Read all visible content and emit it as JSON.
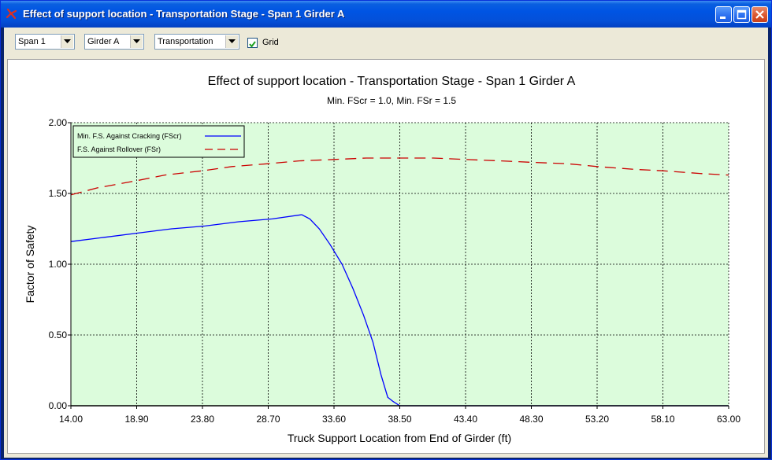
{
  "window": {
    "title": "Effect of support location - Transportation Stage - Span 1 Girder A"
  },
  "toolbar": {
    "span": "Span 1",
    "girder": "Girder A",
    "stage": "Transportation",
    "grid_label": "Grid",
    "grid_checked": true
  },
  "colors": {
    "plot_bg": "#dcfcdc",
    "fscr": "#0000ff",
    "fsr": "#cc0000"
  },
  "chart_data": {
    "type": "line",
    "title": "Effect of support location - Transportation Stage - Span 1 Girder A",
    "subtitle": "Min. FScr = 1.0, Min. FSr = 1.5",
    "xlabel": "Truck Support Location from End of Girder (ft)",
    "ylabel": "Factor of Safety",
    "xlim": [
      14.0,
      63.0
    ],
    "ylim": [
      0.0,
      2.0
    ],
    "xticks": [
      "14.00",
      "18.90",
      "23.80",
      "28.70",
      "33.60",
      "38.50",
      "43.40",
      "48.30",
      "53.20",
      "58.10",
      "63.00"
    ],
    "yticks": [
      "0.00",
      "0.50",
      "1.00",
      "1.50",
      "2.00"
    ],
    "grid": true,
    "legend_position": "top-left",
    "series": [
      {
        "name": "Min. F.S. Against Cracking (FScr)",
        "style": "solid",
        "x": [
          14.0,
          16.5,
          19.0,
          21.5,
          24.0,
          26.5,
          29.0,
          31.2,
          31.8,
          32.5,
          33.3,
          34.2,
          35.0,
          35.8,
          36.5,
          37.1,
          37.6,
          38.0,
          38.5,
          39.0,
          43.4,
          48.3,
          53.2,
          58.1,
          63.0
        ],
        "y": [
          1.16,
          1.19,
          1.22,
          1.25,
          1.27,
          1.3,
          1.32,
          1.35,
          1.32,
          1.25,
          1.14,
          1.0,
          0.83,
          0.64,
          0.45,
          0.22,
          0.06,
          0.03,
          0.0,
          0.0,
          0.0,
          0.0,
          0.0,
          0.0,
          0.0
        ]
      },
      {
        "name": "F.S. Against Rollover (FSr)",
        "style": "dashed",
        "x": [
          14.0,
          16.0,
          18.9,
          21.0,
          23.8,
          26.0,
          28.7,
          31.0,
          33.6,
          36.0,
          38.5,
          41.0,
          43.4,
          46.0,
          48.3,
          51.0,
          53.2,
          56.0,
          58.1,
          61.0,
          63.0
        ],
        "y": [
          1.49,
          1.54,
          1.59,
          1.63,
          1.66,
          1.69,
          1.71,
          1.73,
          1.74,
          1.75,
          1.75,
          1.75,
          1.74,
          1.73,
          1.72,
          1.71,
          1.69,
          1.67,
          1.66,
          1.64,
          1.63
        ]
      }
    ]
  }
}
